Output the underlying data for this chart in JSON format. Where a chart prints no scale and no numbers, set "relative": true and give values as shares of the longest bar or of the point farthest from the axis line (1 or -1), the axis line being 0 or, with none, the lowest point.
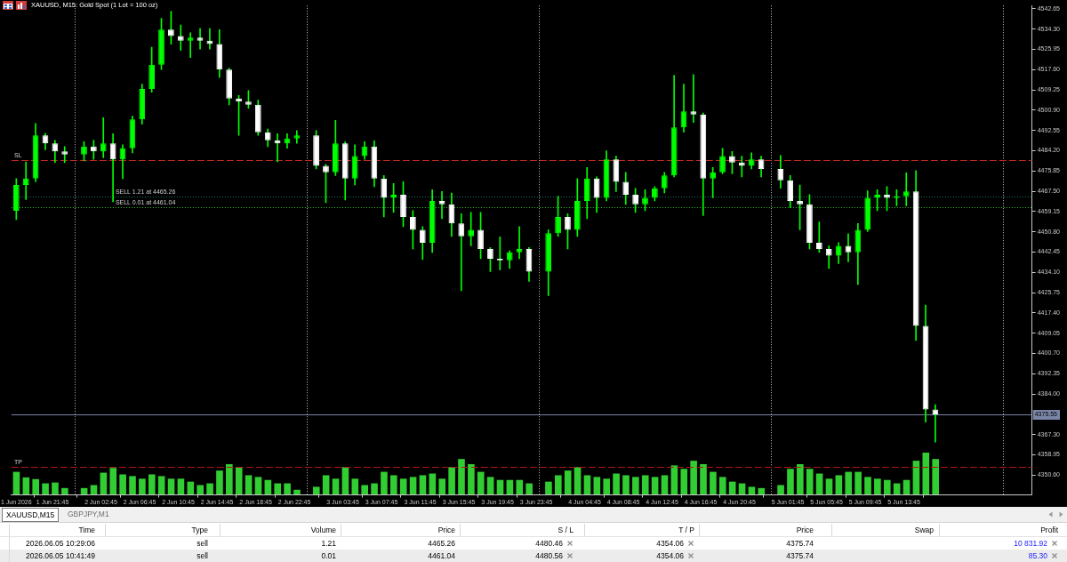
{
  "chart_data": [
    {
      "type": "candlestick",
      "title": "XAUUSD, M15: Gold Spot (1 Lot = 100 oz)",
      "x": [
        "2026-06-01T18:00",
        "2026-06-01T19:00",
        "2026-06-01T20:00",
        "2026-06-01T21:00",
        "2026-06-01T22:00",
        "2026-06-01T23:00",
        "2026-06-02T01:00",
        "2026-06-02T02:00",
        "2026-06-02T03:00",
        "2026-06-02T04:00",
        "2026-06-02T05:00",
        "2026-06-02T06:00",
        "2026-06-02T07:00",
        "2026-06-02T08:00",
        "2026-06-02T09:00",
        "2026-06-02T10:00",
        "2026-06-02T11:00",
        "2026-06-02T12:00",
        "2026-06-02T13:00",
        "2026-06-02T14:00",
        "2026-06-02T15:00",
        "2026-06-02T16:00",
        "2026-06-02T17:00",
        "2026-06-02T18:00",
        "2026-06-02T19:00",
        "2026-06-02T20:00",
        "2026-06-02T21:00",
        "2026-06-02T22:00",
        "2026-06-02T23:00",
        "2026-06-03T01:00",
        "2026-06-03T02:00",
        "2026-06-03T03:00",
        "2026-06-03T04:00",
        "2026-06-03T05:00",
        "2026-06-03T06:00",
        "2026-06-03T07:00",
        "2026-06-03T08:00",
        "2026-06-03T09:00",
        "2026-06-03T10:00",
        "2026-06-03T11:00",
        "2026-06-03T12:00",
        "2026-06-03T13:00",
        "2026-06-03T14:00",
        "2026-06-03T15:00",
        "2026-06-03T16:00",
        "2026-06-03T17:00",
        "2026-06-03T18:00",
        "2026-06-03T19:00",
        "2026-06-03T20:00",
        "2026-06-03T21:00",
        "2026-06-03T22:00",
        "2026-06-03T23:00",
        "2026-06-04T01:00",
        "2026-06-04T02:00",
        "2026-06-04T03:00",
        "2026-06-04T04:00",
        "2026-06-04T05:00",
        "2026-06-04T06:00",
        "2026-06-04T07:00",
        "2026-06-04T08:00",
        "2026-06-04T09:00",
        "2026-06-04T10:00",
        "2026-06-04T11:00",
        "2026-06-04T12:00",
        "2026-06-04T13:00",
        "2026-06-04T14:00",
        "2026-06-04T15:00",
        "2026-06-04T16:00",
        "2026-06-04T17:00",
        "2026-06-04T18:00",
        "2026-06-04T19:00",
        "2026-06-04T20:00",
        "2026-06-04T21:00",
        "2026-06-04T22:00",
        "2026-06-04T23:00",
        "2026-06-05T01:00",
        "2026-06-05T02:00",
        "2026-06-05T03:00",
        "2026-06-05T04:00",
        "2026-06-05T05:00",
        "2026-06-05T06:00",
        "2026-06-05T07:00",
        "2026-06-05T08:00",
        "2026-06-05T09:00",
        "2026-06-05T10:00",
        "2026-06-05T11:00",
        "2026-06-05T12:00",
        "2026-06-05T13:00",
        "2026-06-05T14:00",
        "2026-06-05T15:00",
        "2026-06-05T16:00",
        "2026-06-05T17:00"
      ],
      "ohlc": [
        [
          4459.5,
          4472.7,
          4455.8,
          4470.1
        ],
        [
          4470.1,
          4479.6,
          4464.1,
          4472.7
        ],
        [
          4472.7,
          4495.4,
          4471.4,
          4490.5
        ],
        [
          4490.5,
          4491.4,
          4484.6,
          4487.2
        ],
        [
          4487.2,
          4488.5,
          4479.3,
          4483.9
        ],
        [
          4483.9,
          4485.9,
          4479.3,
          4482.6
        ],
        [
          4482.6,
          4487.9,
          4480.0,
          4485.9
        ],
        [
          4485.9,
          4488.5,
          4480.6,
          4483.9
        ],
        [
          4483.9,
          4497.8,
          4481.3,
          4487.2
        ],
        [
          4487.2,
          4491.2,
          4463.2,
          4480.6
        ],
        [
          4480.6,
          4486.6,
          4472.7,
          4485.2
        ],
        [
          4485.2,
          4498.4,
          4483.3,
          4497.1
        ],
        [
          4497.1,
          4511.6,
          4495.1,
          4509.6
        ],
        [
          4509.6,
          4526.8,
          4508.3,
          4519.6
        ],
        [
          4519.6,
          4538.7,
          4517.6,
          4534.1
        ],
        [
          4534.1,
          4541.6,
          4528.1,
          4531.4
        ],
        [
          4531.4,
          4536.0,
          4525.5,
          4529.5
        ],
        [
          4529.5,
          4532.8,
          4522.6,
          4530.8
        ],
        [
          4530.8,
          4534.5,
          4526.1,
          4529.5
        ],
        [
          4529.5,
          4534.5,
          4526.1,
          4528.1
        ],
        [
          4528.1,
          4534.1,
          4514.3,
          4517.6
        ],
        [
          4517.6,
          4518.2,
          4503.1,
          4505.7
        ],
        [
          4505.7,
          4507.0,
          4490.5,
          4504.4
        ],
        [
          4504.4,
          4509.0,
          4501.7,
          4503.1
        ],
        [
          4503.1,
          4505.0,
          4490.5,
          4491.8
        ],
        [
          4491.8,
          4493.1,
          4485.9,
          4488.5
        ],
        [
          4488.5,
          4491.2,
          4479.6,
          4487.2
        ],
        [
          4487.2,
          4491.2,
          4485.2,
          4489.2
        ],
        [
          4489.2,
          4492.5,
          4487.2,
          4490.5
        ],
        [
          4490.5,
          4492.5,
          4476.7,
          4478.0
        ],
        [
          4478.0,
          4478.6,
          4462.8,
          4475.3
        ],
        [
          4475.3,
          4496.7,
          4474.0,
          4487.2
        ],
        [
          4487.2,
          4487.9,
          4463.9,
          4472.7
        ],
        [
          4472.7,
          4486.6,
          4470.1,
          4482.0
        ],
        [
          4482.0,
          4487.9,
          4480.6,
          4485.9
        ],
        [
          4485.9,
          4488.3,
          4469.4,
          4472.7
        ],
        [
          4472.7,
          4474.0,
          4456.9,
          4464.8
        ],
        [
          4464.8,
          4470.7,
          4458.8,
          4466.1
        ],
        [
          4466.1,
          4471.4,
          4452.9,
          4456.9
        ],
        [
          4456.9,
          4459.5,
          4443.7,
          4451.6
        ],
        [
          4451.6,
          4452.9,
          4439.4,
          4446.3
        ],
        [
          4446.3,
          4468.1,
          4442.3,
          4463.5
        ],
        [
          4463.5,
          4467.4,
          4456.2,
          4462.1
        ],
        [
          4462.1,
          4466.8,
          4448.9,
          4454.2
        ],
        [
          4454.2,
          4458.2,
          4426.5,
          4448.9
        ],
        [
          4448.9,
          4458.8,
          4445.0,
          4451.6
        ],
        [
          4451.6,
          4458.8,
          4439.7,
          4443.7
        ],
        [
          4443.7,
          4444.3,
          4434.4,
          4439.7
        ],
        [
          4439.7,
          4448.7,
          4435.1,
          4439.0
        ],
        [
          4439.0,
          4443.0,
          4435.7,
          4442.3
        ],
        [
          4442.3,
          4452.9,
          4439.7,
          4443.7
        ],
        [
          4443.7,
          4444.3,
          4430.4,
          4434.4
        ],
        [
          4434.4,
          4451.6,
          4424.5,
          4450.2
        ],
        [
          4450.2,
          4465.4,
          4448.9,
          4456.9
        ],
        [
          4456.9,
          4458.2,
          4443.7,
          4451.6
        ],
        [
          4451.6,
          4472.7,
          4448.9,
          4463.5
        ],
        [
          4463.5,
          4477.3,
          4456.2,
          4472.7
        ],
        [
          4472.7,
          4473.4,
          4458.8,
          4464.8
        ],
        [
          4464.8,
          4484.2,
          4463.5,
          4480.6
        ],
        [
          4480.6,
          4482.0,
          4467.4,
          4471.4
        ],
        [
          4471.4,
          4475.3,
          4462.1,
          4466.1
        ],
        [
          4466.1,
          4468.7,
          4458.8,
          4462.1
        ],
        [
          4462.1,
          4468.1,
          4459.5,
          4464.8
        ],
        [
          4464.8,
          4469.4,
          4463.5,
          4468.7
        ],
        [
          4468.7,
          4475.3,
          4466.8,
          4474.0
        ],
        [
          4474.0,
          4515.2,
          4473.4,
          4493.8
        ],
        [
          4493.8,
          4511.6,
          4491.8,
          4500.4
        ],
        [
          4500.4,
          4515.6,
          4495.8,
          4499.1
        ],
        [
          4499.1,
          4499.7,
          4457.5,
          4472.7
        ],
        [
          4472.7,
          4477.3,
          4464.8,
          4475.3
        ],
        [
          4475.3,
          4485.2,
          4474.7,
          4482.0
        ],
        [
          4482.0,
          4483.9,
          4474.7,
          4479.3
        ],
        [
          4479.3,
          4482.0,
          4473.4,
          4478.0
        ],
        [
          4478.0,
          4483.3,
          4476.7,
          4480.6
        ],
        [
          4480.6,
          4482.0,
          4473.4,
          4476.7
        ],
        [
          4476.7,
          4482.2,
          4468.7,
          4472.0
        ],
        [
          4472.0,
          4474.0,
          4460.8,
          4463.5
        ],
        [
          4463.5,
          4470.1,
          4451.6,
          4462.1
        ],
        [
          4462.1,
          4466.1,
          4443.7,
          4446.3
        ],
        [
          4446.3,
          4454.9,
          4442.3,
          4443.7
        ],
        [
          4443.7,
          4445.0,
          4435.7,
          4441.0
        ],
        [
          4441.0,
          4446.3,
          4437.7,
          4445.0
        ],
        [
          4445.0,
          4450.0,
          4438.4,
          4442.3
        ],
        [
          4442.3,
          4454.2,
          4429.1,
          4451.6
        ],
        [
          4451.6,
          4467.7,
          4450.9,
          4464.8
        ],
        [
          4464.8,
          4468.1,
          4459.5,
          4466.1
        ],
        [
          4466.1,
          4469.4,
          4459.5,
          4464.8
        ],
        [
          4464.8,
          4468.1,
          4461.5,
          4465.4
        ],
        [
          4465.4,
          4475.1,
          4461.5,
          4467.4
        ],
        [
          4467.4,
          4476.0,
          4406.0,
          4412.0
        ],
        [
          4412.0,
          4420.6,
          4372.4,
          4377.6
        ],
        [
          4377.6,
          4379.6,
          4364.2,
          4375.55
        ]
      ],
      "color": "#00ff00",
      "colors": [
        "#00ff00",
        "#00ff00",
        "#00ff00",
        "#ffffff",
        "#ffffff",
        "#ffffff",
        "#00ff00",
        "#ffffff",
        "#00ff00",
        "#ffffff",
        "#00ff00",
        "#00ff00",
        "#00ff00",
        "#00ff00",
        "#00ff00",
        "#ffffff",
        "#ffffff",
        "#00ff00",
        "#ffffff",
        "#ffffff",
        "#ffffff",
        "#ffffff",
        "#ffffff",
        "#ffffff",
        "#ffffff",
        "#ffffff",
        "#ffffff",
        "#00ff00",
        "#00ff00",
        "#ffffff",
        "#ffffff",
        "#00ff00",
        "#ffffff",
        "#00ff00",
        "#00ff00",
        "#ffffff",
        "#ffffff",
        "#00ff00",
        "#ffffff",
        "#ffffff",
        "#ffffff",
        "#00ff00",
        "#ffffff",
        "#ffffff",
        "#ffffff",
        "#00ff00",
        "#ffffff",
        "#ffffff",
        "#ffffff",
        "#00ff00",
        "#00ff00",
        "#ffffff",
        "#00ff00",
        "#00ff00",
        "#ffffff",
        "#00ff00",
        "#00ff00",
        "#ffffff",
        "#00ff00",
        "#ffffff",
        "#ffffff",
        "#ffffff",
        "#00ff00",
        "#00ff00",
        "#00ff00",
        "#00ff00",
        "#00ff00",
        "#ffffff",
        "#ffffff",
        "#00ff00",
        "#00ff00",
        "#ffffff",
        "#ffffff",
        "#00ff00",
        "#ffffff",
        "#ffffff",
        "#ffffff",
        "#ffffff",
        "#ffffff",
        "#ffffff",
        "#ffffff",
        "#00ff00",
        "#ffffff",
        "#00ff00",
        "#00ff00",
        "#00ff00",
        "#ffffff",
        "#00ff00",
        "#00ff00",
        "#ffffff",
        "#ffffff",
        "#ffffff"
      ],
      "xlim": [
        "2026-06-01T17:30",
        "2026-06-06T03:00"
      ],
      "xticks": [
        {
          "value": "2026-06-01T18:00",
          "label": "1 Jun 2026"
        },
        {
          "value": "2026-06-01T21:45",
          "label": "1 Jun 21:45"
        },
        {
          "value": "2026-06-02T02:45",
          "label": "2 Jun 02:45"
        },
        {
          "value": "2026-06-02T06:45",
          "label": "2 Jun 06:45"
        },
        {
          "value": "2026-06-02T10:45",
          "label": "2 Jun 10:45"
        },
        {
          "value": "2026-06-02T14:45",
          "label": "2 Jun 14:45"
        },
        {
          "value": "2026-06-02T18:45",
          "label": "2 Jun 18:45"
        },
        {
          "value": "2026-06-02T22:45",
          "label": "2 Jun 22:45"
        },
        {
          "value": "2026-06-03T03:45",
          "label": "3 Jun 03:45"
        },
        {
          "value": "2026-06-03T07:45",
          "label": "3 Jun 07:45"
        },
        {
          "value": "2026-06-03T11:45",
          "label": "3 Jun 11:45"
        },
        {
          "value": "2026-06-03T15:45",
          "label": "3 Jun 15:45"
        },
        {
          "value": "2026-06-03T19:45",
          "label": "3 Jun 19:45"
        },
        {
          "value": "2026-06-03T23:45",
          "label": "3 Jun 23:45"
        },
        {
          "value": "2026-06-04T04:45",
          "label": "4 Jun 04:45"
        },
        {
          "value": "2026-06-04T08:45",
          "label": "4 Jun 08:45"
        },
        {
          "value": "2026-06-04T12:45",
          "label": "4 Jun 12:45"
        },
        {
          "value": "2026-06-04T16:45",
          "label": "4 Jun 16:45"
        },
        {
          "value": "2026-06-04T20:45",
          "label": "4 Jun 20:45"
        },
        {
          "value": "2026-06-05T01:45",
          "label": "5 Jun 01:45"
        },
        {
          "value": "2026-06-05T05:45",
          "label": "5 Jun 05:45"
        },
        {
          "value": "2026-06-05T09:45",
          "label": "5 Jun 09:45"
        },
        {
          "value": "2026-06-05T13:45",
          "label": "5 Jun 13:45"
        }
      ],
      "ylim": [
        4342.4,
        4544.0
      ],
      "yticks": [
        {
          "value": 4542.65,
          "label": "4542.65"
        },
        {
          "value": 4534.3,
          "label": "4534.30"
        },
        {
          "value": 4525.95,
          "label": "4525.95"
        },
        {
          "value": 4517.6,
          "label": "4517.60"
        },
        {
          "value": 4509.25,
          "label": "4509.25"
        },
        {
          "value": 4500.9,
          "label": "4500.90"
        },
        {
          "value": 4492.55,
          "label": "4492.55"
        },
        {
          "value": 4484.2,
          "label": "4484.20"
        },
        {
          "value": 4475.85,
          "label": "4475.85"
        },
        {
          "value": 4467.5,
          "label": "4467.50"
        },
        {
          "value": 4459.15,
          "label": "4459.15"
        },
        {
          "value": 4450.8,
          "label": "4450.80"
        },
        {
          "value": 4442.45,
          "label": "4442.45"
        },
        {
          "value": 4434.1,
          "label": "4434.10"
        },
        {
          "value": 4425.75,
          "label": "4425.75"
        },
        {
          "value": 4417.4,
          "label": "4417.40"
        },
        {
          "value": 4409.05,
          "label": "4409.05"
        },
        {
          "value": 4400.7,
          "label": "4400.70"
        },
        {
          "value": 4392.35,
          "label": "4392.35"
        },
        {
          "value": 4384,
          "label": "4384.00"
        },
        {
          "value": 4367.3,
          "label": "4367.30"
        },
        {
          "value": 4358.95,
          "label": "4358.95"
        },
        {
          "value": 4350.6,
          "label": "4350.60"
        }
      ],
      "ref_lines": [
        {
          "axis": "x",
          "value": "2026-06-02T00:00",
          "color": "#c8c8c8",
          "line_style": "dotted"
        },
        {
          "axis": "x",
          "value": "2026-06-03T00:00",
          "color": "#c8c8c8",
          "line_style": "dotted"
        },
        {
          "axis": "x",
          "value": "2026-06-04T00:00",
          "color": "#c8c8c8",
          "line_style": "dotted"
        },
        {
          "axis": "x",
          "value": "2026-06-05T00:00",
          "color": "#c8c8c8",
          "line_style": "dotted"
        },
        {
          "axis": "x",
          "value": "2026-06-06T00:00",
          "color": "#c8c8c8",
          "line_style": "dotted"
        },
        {
          "axis": "y",
          "value": 4480.46,
          "label": "SL",
          "color": "#c0281e",
          "line_style": "dashed"
        },
        {
          "axis": "y",
          "value": 4465.26,
          "label": "SELL 1.21 at 4465.26",
          "color": "#1e7378",
          "line_style": "dotted"
        },
        {
          "axis": "y",
          "value": 4461.04,
          "label": "SELL 0.01 at 4461.04",
          "color": "#32cd32",
          "line_style": "dotted"
        },
        {
          "axis": "y",
          "value": 4375.55,
          "label": "4375.55",
          "color": "#7a86a8",
          "line_style": "solid"
        },
        {
          "axis": "y",
          "value": 4354.06,
          "label": "TP",
          "color": "#b41414",
          "line_style": "dashed"
        }
      ]
    },
    {
      "type": "bar",
      "relative": true,
      "tick_labels": false,
      "color": "#32cd32",
      "xlim": [
        "2026-06-01T17:30",
        "2026-06-06T03:00"
      ],
      "x": [
        "2026-06-01T18:00",
        "2026-06-01T19:00",
        "2026-06-01T20:00",
        "2026-06-01T21:00",
        "2026-06-01T22:00",
        "2026-06-01T23:00",
        "2026-06-02T01:00",
        "2026-06-02T02:00",
        "2026-06-02T03:00",
        "2026-06-02T04:00",
        "2026-06-02T05:00",
        "2026-06-02T06:00",
        "2026-06-02T07:00",
        "2026-06-02T08:00",
        "2026-06-02T09:00",
        "2026-06-02T10:00",
        "2026-06-02T11:00",
        "2026-06-02T12:00",
        "2026-06-02T13:00",
        "2026-06-02T14:00",
        "2026-06-02T15:00",
        "2026-06-02T16:00",
        "2026-06-02T17:00",
        "2026-06-02T18:00",
        "2026-06-02T19:00",
        "2026-06-02T20:00",
        "2026-06-02T21:00",
        "2026-06-02T22:00",
        "2026-06-02T23:00",
        "2026-06-03T01:00",
        "2026-06-03T02:00",
        "2026-06-03T03:00",
        "2026-06-03T04:00",
        "2026-06-03T05:00",
        "2026-06-03T06:00",
        "2026-06-03T07:00",
        "2026-06-03T08:00",
        "2026-06-03T09:00",
        "2026-06-03T10:00",
        "2026-06-03T11:00",
        "2026-06-03T12:00",
        "2026-06-03T13:00",
        "2026-06-03T14:00",
        "2026-06-03T15:00",
        "2026-06-03T16:00",
        "2026-06-03T17:00",
        "2026-06-03T18:00",
        "2026-06-03T19:00",
        "2026-06-03T20:00",
        "2026-06-03T21:00",
        "2026-06-03T22:00",
        "2026-06-03T23:00",
        "2026-06-04T01:00",
        "2026-06-04T02:00",
        "2026-06-04T03:00",
        "2026-06-04T04:00",
        "2026-06-04T05:00",
        "2026-06-04T06:00",
        "2026-06-04T07:00",
        "2026-06-04T08:00",
        "2026-06-04T09:00",
        "2026-06-04T10:00",
        "2026-06-04T11:00",
        "2026-06-04T12:00",
        "2026-06-04T13:00",
        "2026-06-04T14:00",
        "2026-06-04T15:00",
        "2026-06-04T16:00",
        "2026-06-04T17:00",
        "2026-06-04T18:00",
        "2026-06-04T19:00",
        "2026-06-04T20:00",
        "2026-06-04T21:00",
        "2026-06-04T22:00",
        "2026-06-04T23:00",
        "2026-06-05T01:00",
        "2026-06-05T02:00",
        "2026-06-05T03:00",
        "2026-06-05T04:00",
        "2026-06-05T05:00",
        "2026-06-05T06:00",
        "2026-06-05T07:00",
        "2026-06-05T08:00",
        "2026-06-05T09:00",
        "2026-06-05T10:00",
        "2026-06-05T11:00",
        "2026-06-05T12:00",
        "2026-06-05T13:00",
        "2026-06-05T14:00",
        "2026-06-05T15:00",
        "2026-06-05T16:00",
        "2026-06-05T17:00"
      ],
      "values": [
        0.55,
        0.42,
        0.38,
        0.28,
        0.3,
        0.17,
        0.17,
        0.24,
        0.53,
        0.64,
        0.49,
        0.45,
        0.39,
        0.49,
        0.45,
        0.39,
        0.39,
        0.32,
        0.24,
        0.28,
        0.58,
        0.73,
        0.66,
        0.47,
        0.43,
        0.36,
        0.28,
        0.28,
        0.13,
        0.2,
        0.47,
        0.39,
        0.66,
        0.39,
        0.24,
        0.28,
        0.55,
        0.47,
        0.39,
        0.43,
        0.47,
        0.51,
        0.39,
        0.66,
        0.85,
        0.73,
        0.55,
        0.43,
        0.36,
        0.36,
        0.36,
        0.28,
        0.32,
        0.47,
        0.58,
        0.66,
        0.47,
        0.43,
        0.39,
        0.51,
        0.47,
        0.43,
        0.47,
        0.43,
        0.47,
        0.7,
        0.62,
        0.81,
        0.73,
        0.55,
        0.43,
        0.32,
        0.28,
        0.2,
        0.17,
        0.24,
        0.62,
        0.73,
        0.62,
        0.51,
        0.39,
        0.47,
        0.55,
        0.55,
        0.43,
        0.39,
        0.36,
        0.28,
        0.36,
        0.81,
        1,
        0.85
      ]
    },
    {
      "type": "other",
      "annotations": [
        "XAUUSD,M15",
        "GBPJPY,M1",
        "Time",
        "Type",
        "Volume",
        "Price",
        "S / L",
        "T / P",
        "Price",
        "Swap",
        "Profit",
        "2026.06.05 10:29:06",
        "sell",
        "1.21",
        "4465.26",
        "4480.46",
        "4354.06",
        "4375.74",
        "10 831.92",
        "2026.06.05 10:41:49",
        "sell",
        "0.01",
        "4461.04",
        "4480.56",
        "4354.06",
        "4375.74",
        "85.30"
      ]
    }
  ]
}
